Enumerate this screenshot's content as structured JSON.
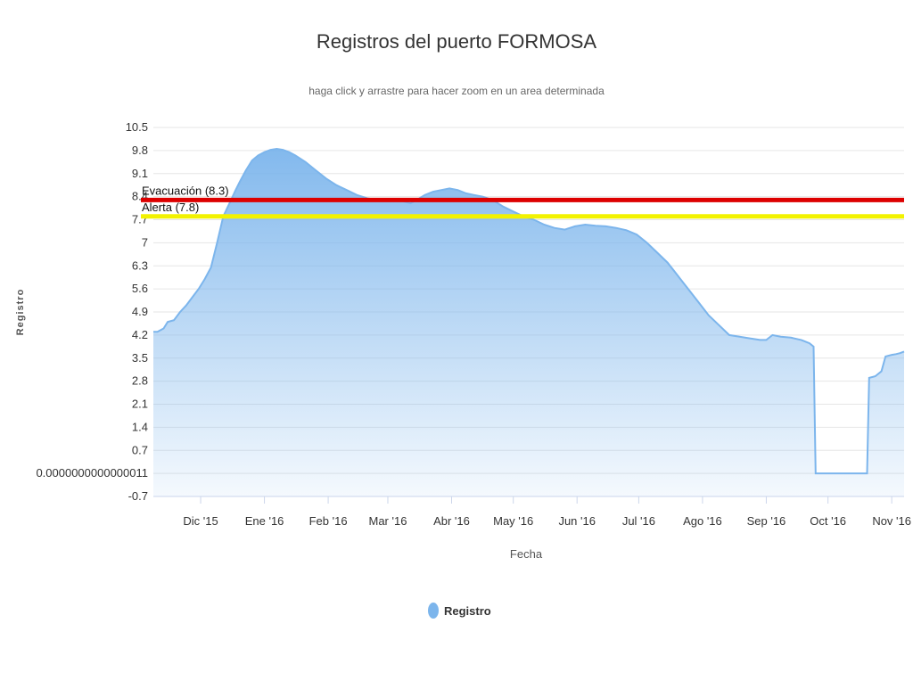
{
  "chart_data": {
    "type": "area",
    "title": "Registros del puerto FORMOSA",
    "subtitle": "haga click y arrastre para hacer zoom en un area determinada",
    "xlabel": "Fecha",
    "ylabel": "Registro",
    "ylim": [
      -0.7,
      10.5
    ],
    "yticks": [
      "10.5",
      "9.8",
      "9.1",
      "8.4",
      "7.7",
      "7",
      "6.3",
      "5.6",
      "4.9",
      "4.2",
      "3.5",
      "2.8",
      "2.1",
      "1.4",
      "0.7",
      "0.0000000000000011",
      "-0.7"
    ],
    "ytick_values": [
      10.5,
      9.8,
      9.1,
      8.4,
      7.7,
      7.0,
      6.3,
      5.6,
      4.9,
      4.2,
      3.5,
      2.8,
      2.1,
      1.4,
      0.7,
      0.0,
      -0.7
    ],
    "xlim": [
      "2015-11-08",
      "2016-11-07"
    ],
    "xticks": [
      {
        "date": "2015-12-01",
        "label": "Dic '15"
      },
      {
        "date": "2016-01-01",
        "label": "Ene '16"
      },
      {
        "date": "2016-02-01",
        "label": "Feb '16"
      },
      {
        "date": "2016-03-01",
        "label": "Mar '16"
      },
      {
        "date": "2016-04-01",
        "label": "Abr '16"
      },
      {
        "date": "2016-05-01",
        "label": "May '16"
      },
      {
        "date": "2016-06-01",
        "label": "Jun '16"
      },
      {
        "date": "2016-07-01",
        "label": "Jul '16"
      },
      {
        "date": "2016-08-01",
        "label": "Ago '16"
      },
      {
        "date": "2016-09-01",
        "label": "Sep '16"
      },
      {
        "date": "2016-10-01",
        "label": "Oct '16"
      },
      {
        "date": "2016-11-01",
        "label": "Nov '16"
      }
    ],
    "grid": true,
    "legend_position": "bottom-center",
    "colors": {
      "series": "#7cb5ec",
      "evacuation": "#dd0000",
      "alert": "#f2f200",
      "grid": "#e6e6e6"
    },
    "plot_lines": [
      {
        "label": "Evacuación (8.3)",
        "value": 8.3,
        "color": "#dd0000"
      },
      {
        "label": "Alerta (7.8)",
        "value": 7.8,
        "color": "#f2f200"
      }
    ],
    "series": [
      {
        "name": "Registro",
        "x": [
          "2015-11-08",
          "2015-11-10",
          "2015-11-13",
          "2015-11-15",
          "2015-11-18",
          "2015-11-21",
          "2015-11-24",
          "2015-11-27",
          "2015-11-30",
          "2015-12-03",
          "2015-12-06",
          "2015-12-09",
          "2015-12-12",
          "2015-12-15",
          "2015-12-18",
          "2015-12-20",
          "2015-12-23",
          "2015-12-26",
          "2015-12-29",
          "2016-01-01",
          "2016-01-04",
          "2016-01-07",
          "2016-01-10",
          "2016-01-13",
          "2016-01-16",
          "2016-01-21",
          "2016-01-26",
          "2016-01-31",
          "2016-02-05",
          "2016-02-10",
          "2016-02-15",
          "2016-02-20",
          "2016-02-25",
          "2016-03-01",
          "2016-03-06",
          "2016-03-09",
          "2016-03-12",
          "2016-03-15",
          "2016-03-19",
          "2016-03-23",
          "2016-03-27",
          "2016-03-31",
          "2016-04-04",
          "2016-04-08",
          "2016-04-12",
          "2016-04-16",
          "2016-04-21",
          "2016-04-26",
          "2016-05-01",
          "2016-05-06",
          "2016-05-11",
          "2016-05-16",
          "2016-05-21",
          "2016-05-26",
          "2016-05-31",
          "2016-06-05",
          "2016-06-10",
          "2016-06-15",
          "2016-06-20",
          "2016-06-25",
          "2016-06-30",
          "2016-07-05",
          "2016-07-10",
          "2016-07-15",
          "2016-07-20",
          "2016-07-25",
          "2016-07-30",
          "2016-08-04",
          "2016-08-09",
          "2016-08-14",
          "2016-08-19",
          "2016-08-24",
          "2016-08-29",
          "2016-09-01",
          "2016-09-04",
          "2016-09-08",
          "2016-09-13",
          "2016-09-18",
          "2016-09-22",
          "2016-09-24",
          "2016-09-25",
          "2016-09-30",
          "2016-10-10",
          "2016-10-20",
          "2016-10-21",
          "2016-10-24",
          "2016-10-27",
          "2016-10-29",
          "2016-11-01",
          "2016-11-03",
          "2016-11-05",
          "2016-11-07"
        ],
        "values": [
          4.3,
          4.3,
          4.4,
          4.6,
          4.65,
          4.9,
          5.1,
          5.35,
          5.6,
          5.9,
          6.25,
          7.0,
          7.8,
          8.2,
          8.6,
          8.85,
          9.2,
          9.5,
          9.65,
          9.75,
          9.82,
          9.85,
          9.82,
          9.75,
          9.65,
          9.45,
          9.2,
          8.95,
          8.75,
          8.6,
          8.45,
          8.35,
          8.3,
          8.3,
          8.3,
          8.25,
          8.2,
          8.3,
          8.45,
          8.55,
          8.6,
          8.65,
          8.6,
          8.5,
          8.45,
          8.4,
          8.3,
          8.1,
          7.95,
          7.8,
          7.7,
          7.55,
          7.45,
          7.4,
          7.5,
          7.55,
          7.52,
          7.5,
          7.45,
          7.38,
          7.25,
          7.0,
          6.7,
          6.4,
          6.0,
          5.6,
          5.2,
          4.8,
          4.5,
          4.2,
          4.15,
          4.1,
          4.05,
          4.05,
          4.2,
          4.15,
          4.12,
          4.05,
          3.95,
          3.85,
          0.0,
          0.0,
          0.0,
          0.0,
          2.9,
          2.95,
          3.1,
          3.55,
          3.6,
          3.62,
          3.65,
          3.7
        ]
      }
    ]
  }
}
